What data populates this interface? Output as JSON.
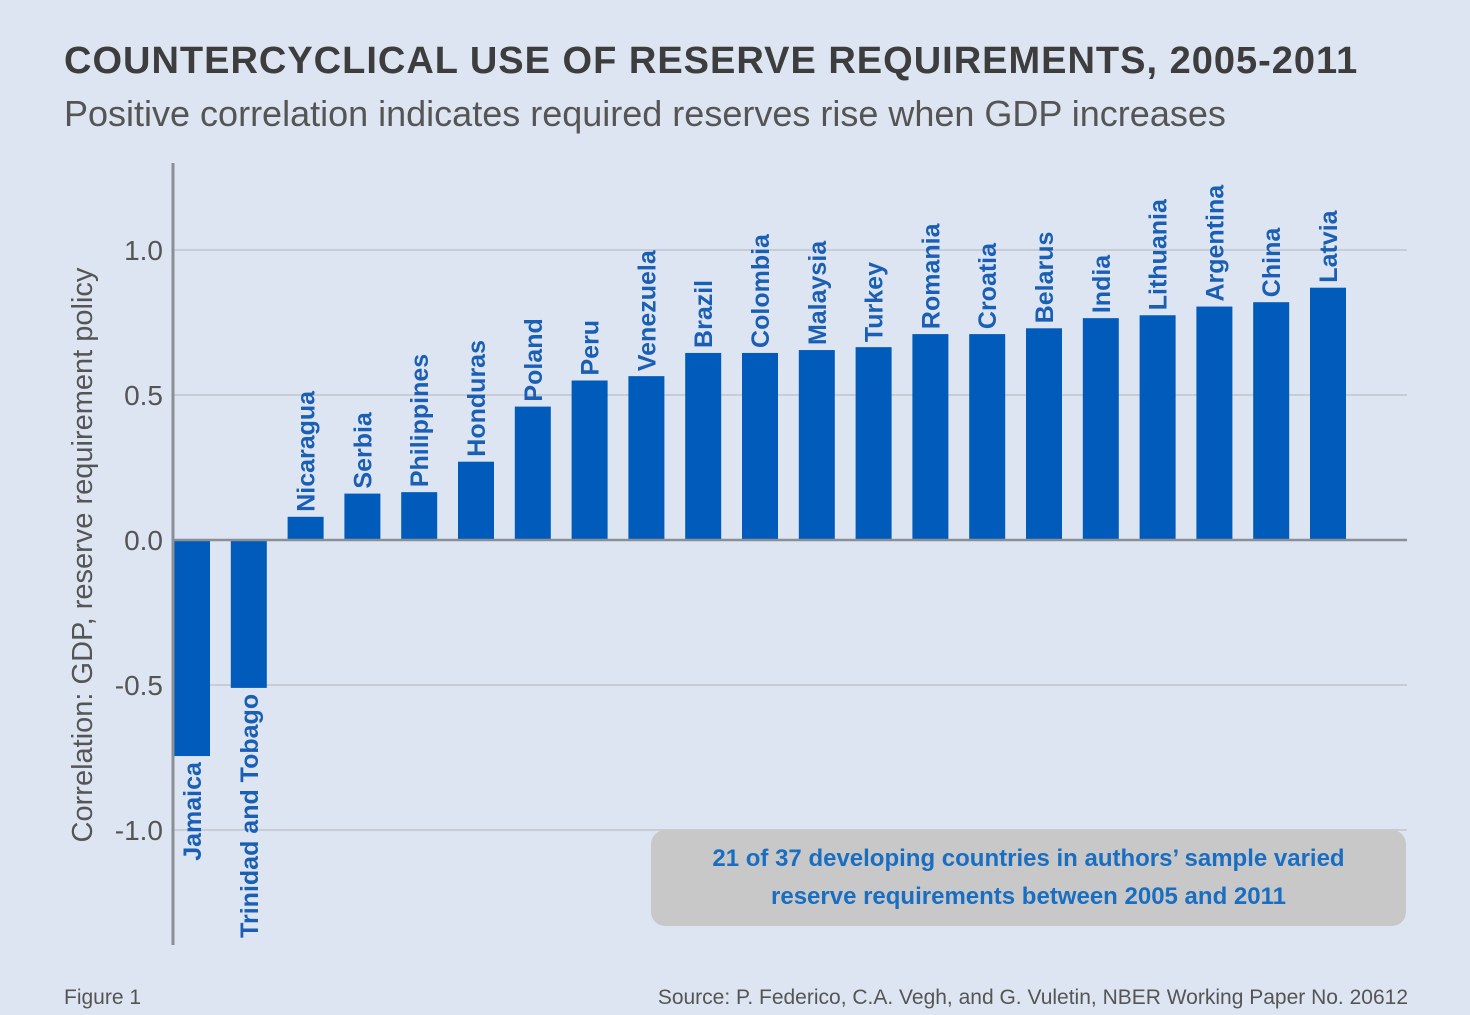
{
  "title": "COUNTERCYCLICAL USE OF RESERVE REQUIREMENTS, 2005-2011",
  "subtitle": "Positive correlation indicates required reserves rise when GDP increases",
  "footer": {
    "figure_label": "Figure 1",
    "source": "Source: P. Federico, C.A. Vegh, and G. Vuletin, NBER Working Paper No. 20612"
  },
  "annotation": {
    "line1": "21 of 37 developing countries in authors’ sample varied",
    "line2": "reserve requirements between 2005 and 2011"
  },
  "colors": {
    "bar": "#005bbb",
    "label": "#1a5fb4",
    "background": "#dde5f2",
    "grid": "#c8ccd4"
  },
  "chart_data": {
    "type": "bar",
    "title": "COUNTERCYCLICAL USE OF RESERVE REQUIREMENTS, 2005-2011",
    "subtitle": "Positive correlation indicates required reserves rise when GDP increases",
    "xlabel": "",
    "ylabel": "Correlation: GDP, reserve requirement policy",
    "ylim": [
      -1.4,
      1.3
    ],
    "yticks": [
      1.0,
      0.5,
      0.0,
      -0.5,
      -1.0
    ],
    "ytick_labels": [
      "1.0",
      "0.5",
      "0.0",
      "-0.5",
      "-1.0"
    ],
    "grid": true,
    "categories": [
      "Jamaica",
      "Trinidad and Tobago",
      "Nicaragua",
      "Serbia",
      "Philippines",
      "Honduras",
      "Poland",
      "Peru",
      "Venezuela",
      "Brazil",
      "Colombia",
      "Malaysia",
      "Turkey",
      "Romania",
      "Croatia",
      "Belarus",
      "India",
      "Lithuania",
      "Argentina",
      "China",
      "Latvia"
    ],
    "values": [
      -0.745,
      -0.51,
      0.08,
      0.16,
      0.165,
      0.27,
      0.46,
      0.55,
      0.565,
      0.645,
      0.645,
      0.655,
      0.665,
      0.71,
      0.71,
      0.73,
      0.765,
      0.775,
      0.805,
      0.82,
      0.87
    ]
  }
}
